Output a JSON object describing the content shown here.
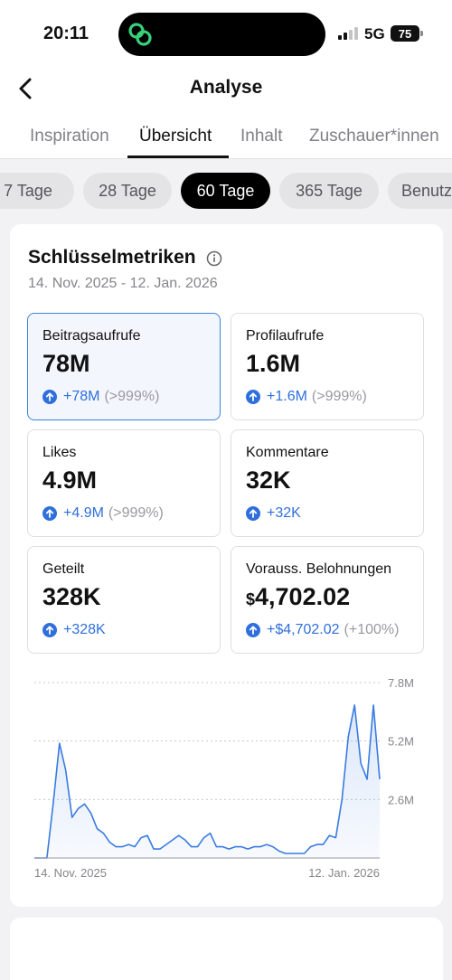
{
  "status_bar": {
    "time": "20:11",
    "network": "5G",
    "battery": "75"
  },
  "nav": {
    "title": "Analyse",
    "back_icon": "chevron-left-icon"
  },
  "tabs": [
    {
      "label": "Inspiration",
      "active": false
    },
    {
      "label": "Übersicht",
      "active": true
    },
    {
      "label": "Inhalt",
      "active": false
    },
    {
      "label": "Zuschauer*innen",
      "active": false
    }
  ],
  "ranges": [
    {
      "label": "7 Tage",
      "active": false
    },
    {
      "label": "28 Tage",
      "active": false
    },
    {
      "label": "60 Tage",
      "active": true
    },
    {
      "label": "365 Tage",
      "active": false
    },
    {
      "label": "Benutzerdefiniert",
      "active": false
    }
  ],
  "key_metrics": {
    "title": "Schlüsselmetriken",
    "date_range": "14. Nov. 2025 - 12. Jan. 2026",
    "items": [
      {
        "label": "Beitragsaufrufe",
        "value": "78M",
        "delta": "+78M",
        "pct": "(>999%)",
        "selected": true
      },
      {
        "label": "Profilaufrufe",
        "value": "1.6M",
        "delta": "+1.6M",
        "pct": "(>999%)",
        "selected": false
      },
      {
        "label": "Likes",
        "value": "4.9M",
        "delta": "+4.9M",
        "pct": "(>999%)",
        "selected": false
      },
      {
        "label": "Kommentare",
        "value": "32K",
        "delta": "+32K",
        "pct": "",
        "selected": false
      },
      {
        "label": "Geteilt",
        "value": "328K",
        "delta": "+328K",
        "pct": "",
        "selected": false
      },
      {
        "label": "Vorauss. Belohnungen",
        "currency": "$",
        "value": "4,702.02",
        "delta": "+$4,702.02",
        "pct": "(+100%)",
        "selected": false
      }
    ]
  },
  "colors": {
    "accent": "#2f6fdc",
    "line": "#3a7be0",
    "active_chip": "#000000"
  },
  "chart_data": {
    "type": "area",
    "x_start_label": "14. Nov. 2025",
    "x_end_label": "12. Jan. 2026",
    "y_ticks": [
      "7.8M",
      "5.2M",
      "2.6M"
    ],
    "ylim": [
      0,
      7.8
    ],
    "grid": true,
    "values": [
      0.0,
      0.0,
      0.0,
      2.4,
      5.1,
      3.9,
      1.8,
      2.2,
      2.4,
      2.0,
      1.3,
      1.1,
      0.7,
      0.5,
      0.5,
      0.6,
      0.5,
      0.9,
      1.0,
      0.4,
      0.4,
      0.6,
      0.8,
      1.0,
      0.8,
      0.5,
      0.5,
      0.9,
      1.1,
      0.5,
      0.5,
      0.4,
      0.5,
      0.5,
      0.4,
      0.5,
      0.5,
      0.6,
      0.5,
      0.3,
      0.2,
      0.2,
      0.2,
      0.2,
      0.5,
      0.6,
      0.6,
      1.0,
      0.9,
      2.6,
      5.4,
      6.8,
      4.2,
      3.5,
      6.8,
      3.5
    ]
  }
}
